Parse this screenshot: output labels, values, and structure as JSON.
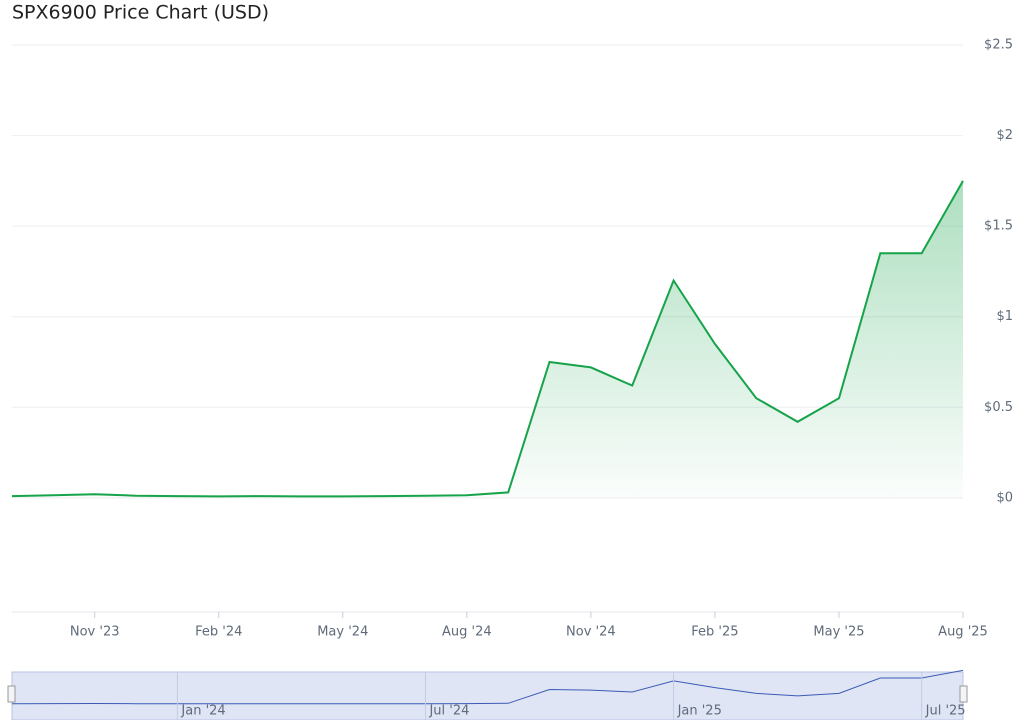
{
  "chart_data": {
    "type": "line",
    "title": "SPX6900 Price Chart (USD)",
    "x": [
      "2023-09",
      "2023-10",
      "2023-11",
      "2023-12",
      "2024-01",
      "2024-02",
      "2024-03",
      "2024-04",
      "2024-05",
      "2024-06",
      "2024-07",
      "2024-08",
      "2024-09",
      "2024-10",
      "2024-11",
      "2024-12",
      "2025-01",
      "2025-02",
      "2025-03",
      "2025-04",
      "2025-05",
      "2025-06",
      "2025-07",
      "2025-08"
    ],
    "series": [
      {
        "name": "SPX6900",
        "color": "#16a34a",
        "values": [
          0.01,
          0.015,
          0.02,
          0.012,
          0.01,
          0.008,
          0.01,
          0.008,
          0.008,
          0.01,
          0.012,
          0.015,
          0.03,
          0.75,
          0.72,
          0.62,
          1.2,
          0.85,
          0.55,
          0.42,
          0.55,
          1.35,
          1.35,
          1.75
        ]
      }
    ],
    "xlim": [
      "2023-09",
      "2025-08"
    ],
    "xticks": [
      {
        "value": "2023-11",
        "label": "Nov '23"
      },
      {
        "value": "2024-02",
        "label": "Feb '24"
      },
      {
        "value": "2024-05",
        "label": "May '24"
      },
      {
        "value": "2024-08",
        "label": "Aug '24"
      },
      {
        "value": "2024-11",
        "label": "Nov '24"
      },
      {
        "value": "2025-02",
        "label": "Feb '25"
      },
      {
        "value": "2025-05",
        "label": "May '25"
      },
      {
        "value": "2025-08",
        "label": "Aug '25"
      }
    ],
    "ylim": [
      -0.63,
      2.5
    ],
    "yticks": [
      {
        "value": 0,
        "label": "$0"
      },
      {
        "value": 0.5,
        "label": "$0.5"
      },
      {
        "value": 1,
        "label": "$1"
      },
      {
        "value": 1.5,
        "label": "$1.5"
      },
      {
        "value": 2,
        "label": "$2"
      },
      {
        "value": 2.5,
        "label": "$2.5"
      }
    ],
    "grid": true,
    "navigator_ticks": [
      {
        "value": "2024-01",
        "label": "Jan '24"
      },
      {
        "value": "2024-07",
        "label": "Jul '24"
      },
      {
        "value": "2025-01",
        "label": "Jan '25"
      },
      {
        "value": "2025-07",
        "label": "Jul '25"
      }
    ]
  }
}
